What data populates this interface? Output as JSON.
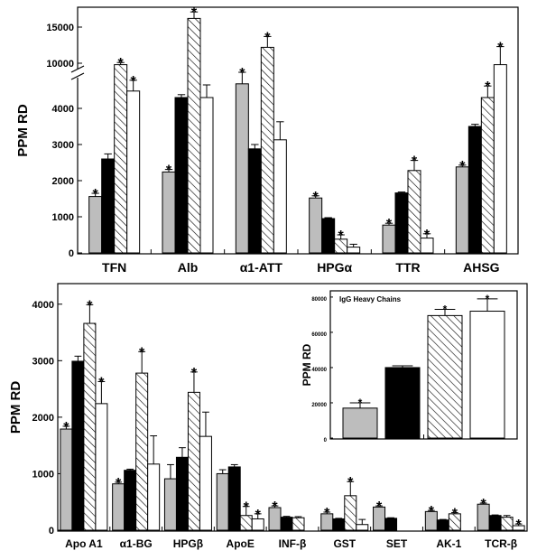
{
  "figure": {
    "colors": {
      "gray": "#bdbdbd",
      "black": "#000000",
      "hatch": "#ffffff",
      "white": "#ffffff"
    },
    "series_styles": [
      "gray",
      "black",
      "hatch",
      "white"
    ]
  },
  "chart_data": [
    {
      "type": "bar",
      "panel": "top",
      "categories": [
        "TFN",
        "Alb",
        "α1-ATT",
        "HPGα",
        "TTR",
        "AHSG"
      ],
      "ylabel": "PPM RD",
      "yticks": [
        0,
        1000,
        2000,
        3000,
        4000,
        10000,
        15000
      ],
      "axis_break": {
        "lower": [
          0,
          4600
        ],
        "upper": [
          9500,
          17000
        ]
      },
      "ylim": [
        0,
        17000
      ],
      "grid": false,
      "legend": "none",
      "series": [
        {
          "values": [
            1560,
            2240,
            4680,
            1520,
            770,
            2380
          ],
          "errors": [
            90,
            70,
            180,
            60,
            50,
            50
          ],
          "stars": [
            true,
            true,
            true,
            true,
            true,
            true
          ]
        },
        {
          "values": [
            2600,
            4300,
            2880,
            950,
            1660,
            3500
          ],
          "errors": [
            140,
            80,
            120,
            25,
            25,
            60
          ],
          "stars": [
            false,
            false,
            false,
            false,
            false,
            false
          ]
        },
        {
          "values": [
            9800,
            16200,
            12200,
            380,
            2280,
            4300
          ],
          "errors": [
            300,
            900,
            1500,
            120,
            280,
            320
          ],
          "stars": [
            true,
            true,
            true,
            true,
            true,
            true
          ]
        },
        {
          "values": [
            4480,
            4300,
            3130,
            160,
            410,
            9800
          ],
          "errors": [
            300,
            350,
            500,
            80,
            120,
            2500
          ],
          "stars": [
            true,
            false,
            false,
            false,
            true,
            true
          ]
        }
      ]
    },
    {
      "type": "bar",
      "panel": "bottom",
      "categories": [
        "Apo A1",
        "α1-BG",
        "HPGβ",
        "ApoE",
        "INF-β",
        "GST",
        "SET",
        "AK-1",
        "TCR-β"
      ],
      "ylabel": "PPM RD",
      "yticks": [
        0,
        1000,
        2000,
        3000,
        4000
      ],
      "ylim": [
        0,
        4300
      ],
      "grid": false,
      "legend": "none",
      "series": [
        {
          "values": [
            1790,
            820,
            910,
            1000,
            400,
            290,
            410,
            330,
            460
          ],
          "errors": [
            50,
            30,
            250,
            70,
            30,
            30,
            20,
            20,
            20
          ],
          "stars": [
            true,
            true,
            false,
            false,
            true,
            true,
            true,
            true,
            true
          ]
        },
        {
          "values": [
            2990,
            1060,
            1290,
            1120,
            230,
            200,
            210,
            180,
            260
          ],
          "errors": [
            90,
            20,
            170,
            40,
            15,
            10,
            10,
            10,
            10
          ],
          "stars": [
            false,
            false,
            false,
            false,
            false,
            false,
            false,
            false,
            false
          ]
        },
        {
          "values": [
            3660,
            2780,
            2440,
            260,
            220,
            610,
            0,
            290,
            230
          ],
          "errors": [
            330,
            380,
            360,
            160,
            20,
            250,
            0,
            20,
            30
          ],
          "stars": [
            true,
            true,
            true,
            true,
            false,
            true,
            false,
            true,
            false
          ]
        },
        {
          "values": [
            2240,
            1170,
            1660,
            200,
            0,
            100,
            0,
            0,
            80
          ],
          "errors": [
            390,
            500,
            430,
            90,
            0,
            90,
            0,
            0,
            30
          ],
          "stars": [
            true,
            false,
            false,
            true,
            false,
            false,
            false,
            false,
            true
          ]
        }
      ]
    },
    {
      "type": "bar",
      "panel": "inset",
      "title": "IgG Heavy Chains",
      "ylabel": "PPM RD",
      "yticks": [
        0,
        20000,
        40000,
        60000,
        80000
      ],
      "ylim": [
        0,
        82000
      ],
      "grid": false,
      "legend": "none",
      "categories": [
        "",
        "",
        "",
        ""
      ],
      "series": [
        {
          "values": [
            17000,
            40000,
            69500,
            72000
          ],
          "errors": [
            3000,
            1000,
            3500,
            7000
          ],
          "stars": [
            true,
            false,
            true,
            true
          ]
        }
      ]
    }
  ]
}
